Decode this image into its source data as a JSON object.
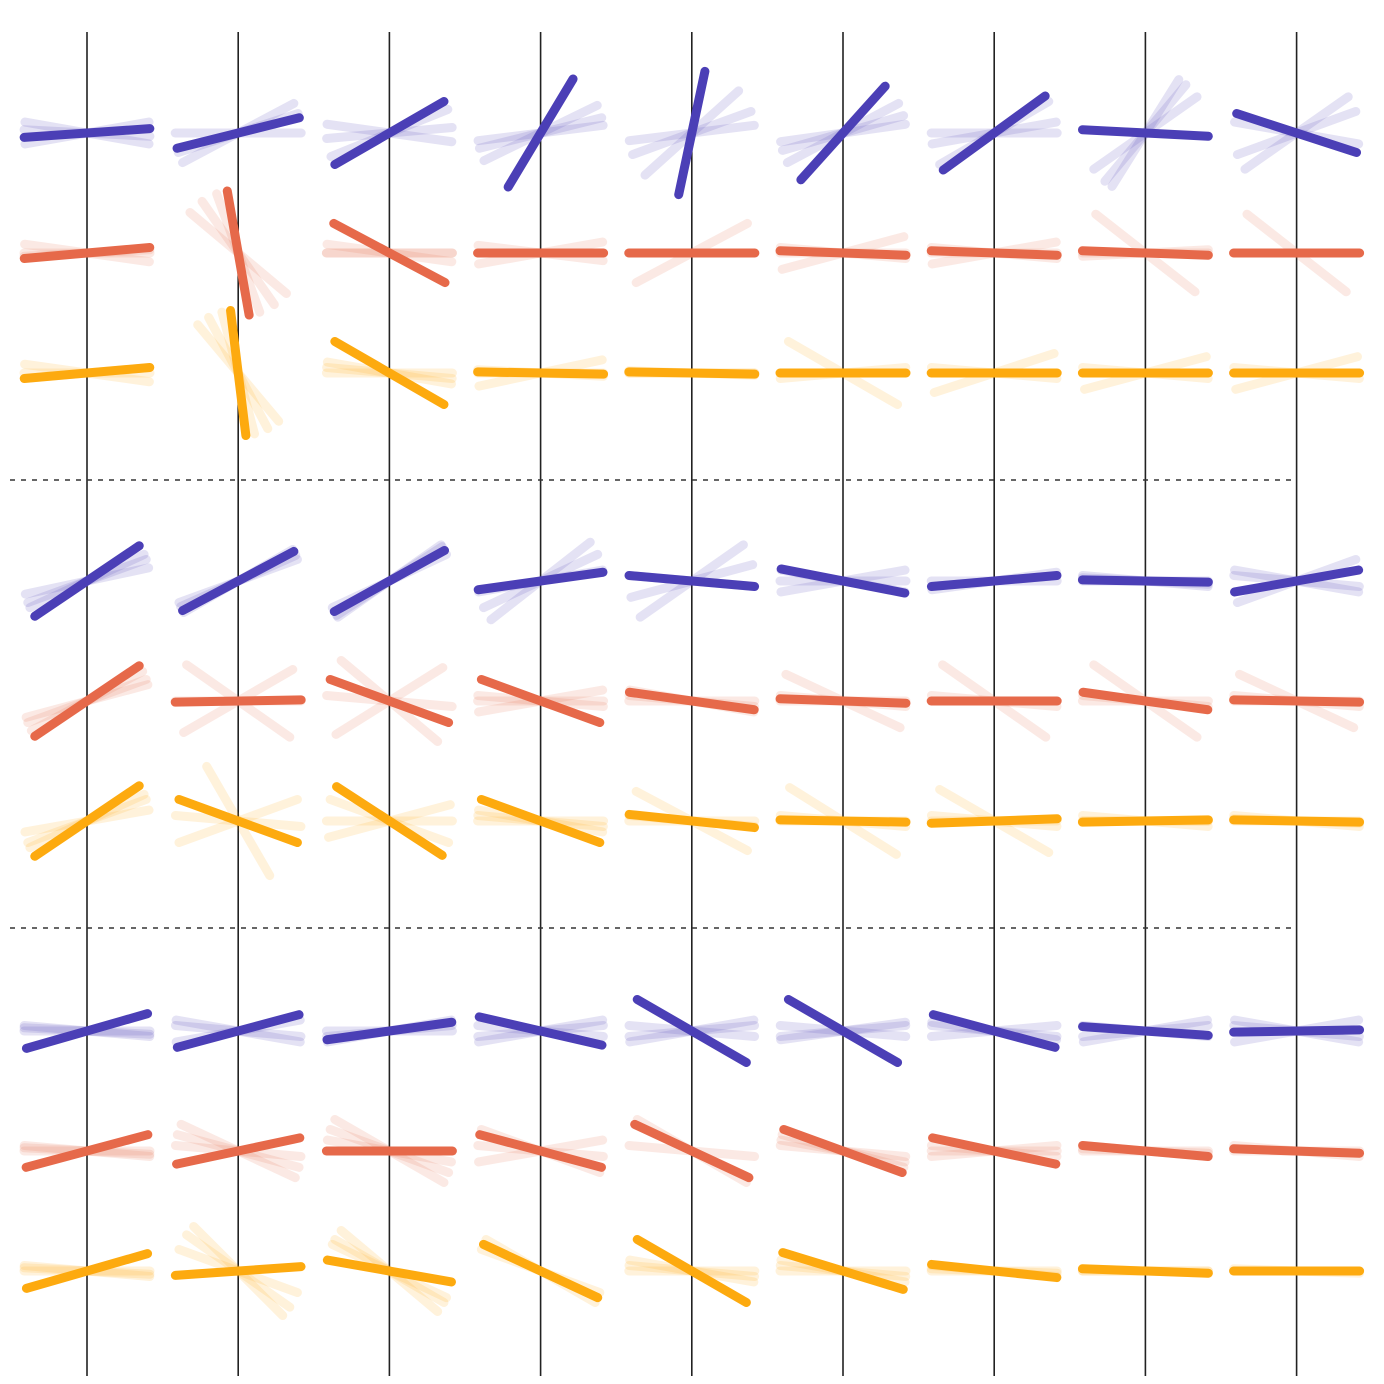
{
  "colors": {
    "background": "#ffffff",
    "grid_line": "#222222",
    "separator": "#333333",
    "series": [
      "#4b3fb6",
      "#e6694a",
      "#fdaa0f"
    ]
  },
  "diagram": {
    "description_type": "small-multiples grid of oriented line glyphs",
    "columns": 9,
    "panels": [
      {
        "rows": [
          {
            "series_index": 0,
            "main_angles": [
              -4,
              -14,
              -30,
              -59,
              -78,
              -48,
              -36,
              3,
              18
            ],
            "ghost_angles": [
              [
                -10,
                10,
                3
              ],
              [
                -28,
                0,
                -18
              ],
              [
                -22,
                -5,
                8
              ],
              [
                -14,
                -26,
                -7
              ],
              [
                -20,
                -42,
                -7
              ],
              [
                -16,
                -8,
                -28
              ],
              [
                -30,
                0,
                -10
              ],
              [
                -50,
                -35,
                -58
              ],
              [
                -35,
                10,
                -20
              ]
            ]
          },
          {
            "series_index": 1,
            "main_angles": [
              -5,
              80,
              28,
              0,
              0,
              2,
              2,
              2,
              0
            ],
            "ghost_angles": [
              [
                8,
                -3,
                0
              ],
              [
                40,
                70,
                55
              ],
              [
                0,
                0,
                8
              ],
              [
                -10,
                7,
                0
              ],
              [
                -28,
                0,
                0
              ],
              [
                -15,
                0,
                5
              ],
              [
                -10,
                5,
                0
              ],
              [
                38,
                0,
                -3
              ],
              [
                38,
                0,
                0
              ]
            ]
          },
          {
            "series_index": 2,
            "main_angles": [
              -5,
              83,
              30,
              1,
              1,
              0,
              0,
              0,
              0
            ],
            "ghost_angles": [
              [
                8,
                -5,
                0
              ],
              [
                50,
                75,
                62
              ],
              [
                5,
                0,
                10
              ],
              [
                -12,
                3,
                0
              ],
              [
                0,
                2,
                0
              ],
              [
                30,
                0,
                -5
              ],
              [
                -18,
                5,
                0
              ],
              [
                -15,
                5,
                0
              ],
              [
                -15,
                5,
                0
              ]
            ]
          }
        ]
      },
      {
        "rows": [
          {
            "series_index": 0,
            "main_angles": [
              -34,
              -28,
              -29,
              -8,
              5,
              11,
              -5,
              1,
              -10
            ],
            "ghost_angles": [
              [
                -20,
                -25,
                -12
              ],
              [
                -24,
                -30,
                -20
              ],
              [
                -25,
                -35,
                -33
              ],
              [
                -10,
                -38,
                -25
              ],
              [
                5,
                -35,
                -15
              ],
              [
                0,
                -10,
                10
              ],
              [
                -8,
                0,
                -5
              ],
              [
                0,
                5,
                3
              ],
              [
                -20,
                10,
                5
              ]
            ]
          },
          {
            "series_index": 1,
            "main_angles": [
              -34,
              -1,
              20,
              20,
              8,
              2,
              0,
              8,
              1
            ],
            "ghost_angles": [
              [
                -20,
                -28,
                -15
              ],
              [
                35,
                -30,
                0
              ],
              [
                -32,
                40,
                5
              ],
              [
                -10,
                0,
                5
              ],
              [
                0,
                10,
                5
              ],
              [
                25,
                0,
                5
              ],
              [
                35,
                0,
                5
              ],
              [
                35,
                0,
                5
              ],
              [
                25,
                0,
                5
              ]
            ]
          },
          {
            "series_index": 2,
            "main_angles": [
              -34,
              20,
              33,
              20,
              6,
              1,
              -2,
              -1,
              1
            ],
            "ghost_angles": [
              [
                -20,
                -25,
                -10
              ],
              [
                -20,
                60,
                5
              ],
              [
                -15,
                20,
                0
              ],
              [
                5,
                0,
                10
              ],
              [
                28,
                0,
                5
              ],
              [
                32,
                0,
                5
              ],
              [
                30,
                0,
                5
              ],
              [
                0,
                5,
                0
              ],
              [
                0,
                5,
                2
              ]
            ]
          }
        ]
      },
      {
        "rows": [
          {
            "series_index": 0,
            "main_angles": [
              -16,
              -15,
              -8,
              13,
              30,
              30,
              15,
              4,
              -1
            ],
            "ghost_angles": [
              [
                5,
                0,
                3
              ],
              [
                -10,
                10,
                5
              ],
              [
                -10,
                -5,
                0
              ],
              [
                -10,
                -5,
                5
              ],
              [
                -10,
                -5,
                5
              ],
              [
                -8,
                -5,
                5
              ],
              [
                -5,
                5,
                8
              ],
              [
                -10,
                -5,
                5
              ],
              [
                -10,
                10,
                5
              ]
            ]
          },
          {
            "series_index": 1,
            "main_angles": [
              -15,
              -12,
              0,
              15,
              25,
              20,
              12,
              5,
              2
            ],
            "ghost_angles": [
              [
                0,
                5,
                3
              ],
              [
                25,
                15,
                5
              ],
              [
                30,
                20,
                10
              ],
              [
                20,
                -10,
                5
              ],
              [
                25,
                30,
                5
              ],
              [
                15,
                5,
                10
              ],
              [
                -5,
                5,
                0
              ],
              [
                5,
                2,
                0
              ],
              [
                5,
                2,
                0
              ]
            ]
          },
          {
            "series_index": 2,
            "main_angles": [
              -16,
              -4,
              10,
              25,
              30,
              17,
              6,
              2,
              0
            ],
            "ghost_angles": [
              [
                5,
                0,
                3
              ],
              [
                35,
                45,
                20
              ],
              [
                30,
                25,
                40
              ],
              [
                25,
                20,
                30
              ],
              [
                0,
                5,
                10
              ],
              [
                10,
                5,
                0
              ],
              [
                5,
                2,
                0
              ],
              [
                2,
                0,
                0
              ],
              [
                2,
                0,
                0
              ]
            ]
          }
        ]
      }
    ]
  }
}
